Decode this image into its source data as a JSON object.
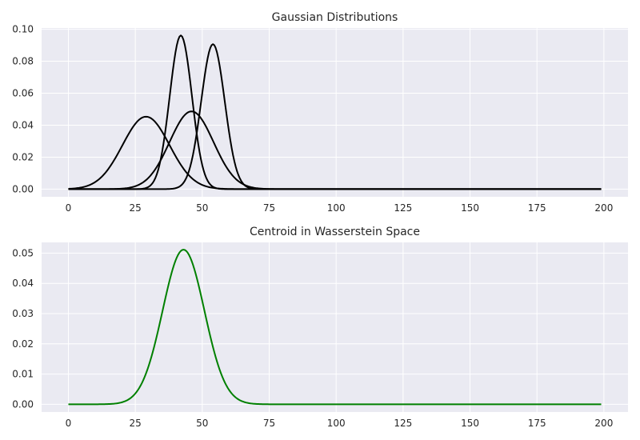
{
  "chart_data": [
    {
      "type": "line",
      "title": "Gaussian Distributions",
      "xlabel": "",
      "ylabel": "",
      "xlim": [
        -10,
        209
      ],
      "ylim": [
        -0.0048,
        0.1008
      ],
      "xticks": [
        0,
        25,
        50,
        75,
        100,
        125,
        150,
        175,
        200
      ],
      "yticks": [
        0.0,
        0.02,
        0.04,
        0.06,
        0.08,
        0.1
      ],
      "ytick_format": 2,
      "grid": true,
      "x_domain": [
        0,
        199
      ],
      "series": [
        {
          "mean": 29,
          "std": 8.8,
          "color": "#000000"
        },
        {
          "mean": 42,
          "std": 4.15,
          "color": "#000000"
        },
        {
          "mean": 46,
          "std": 8.2,
          "color": "#000000"
        },
        {
          "mean": 54,
          "std": 4.4,
          "color": "#000000"
        }
      ]
    },
    {
      "type": "line",
      "title": "Centroid in Wasserstein Space",
      "xlabel": "",
      "ylabel": "",
      "xlim": [
        -10,
        209
      ],
      "ylim": [
        -0.00255,
        0.05355
      ],
      "xticks": [
        0,
        25,
        50,
        75,
        100,
        125,
        150,
        175,
        200
      ],
      "yticks": [
        0.0,
        0.01,
        0.02,
        0.03,
        0.04,
        0.05
      ],
      "ytick_format": 2,
      "grid": true,
      "x_domain": [
        0,
        199
      ],
      "series": [
        {
          "mean": 43,
          "std": 7.8,
          "color": "#008000"
        }
      ]
    }
  ]
}
